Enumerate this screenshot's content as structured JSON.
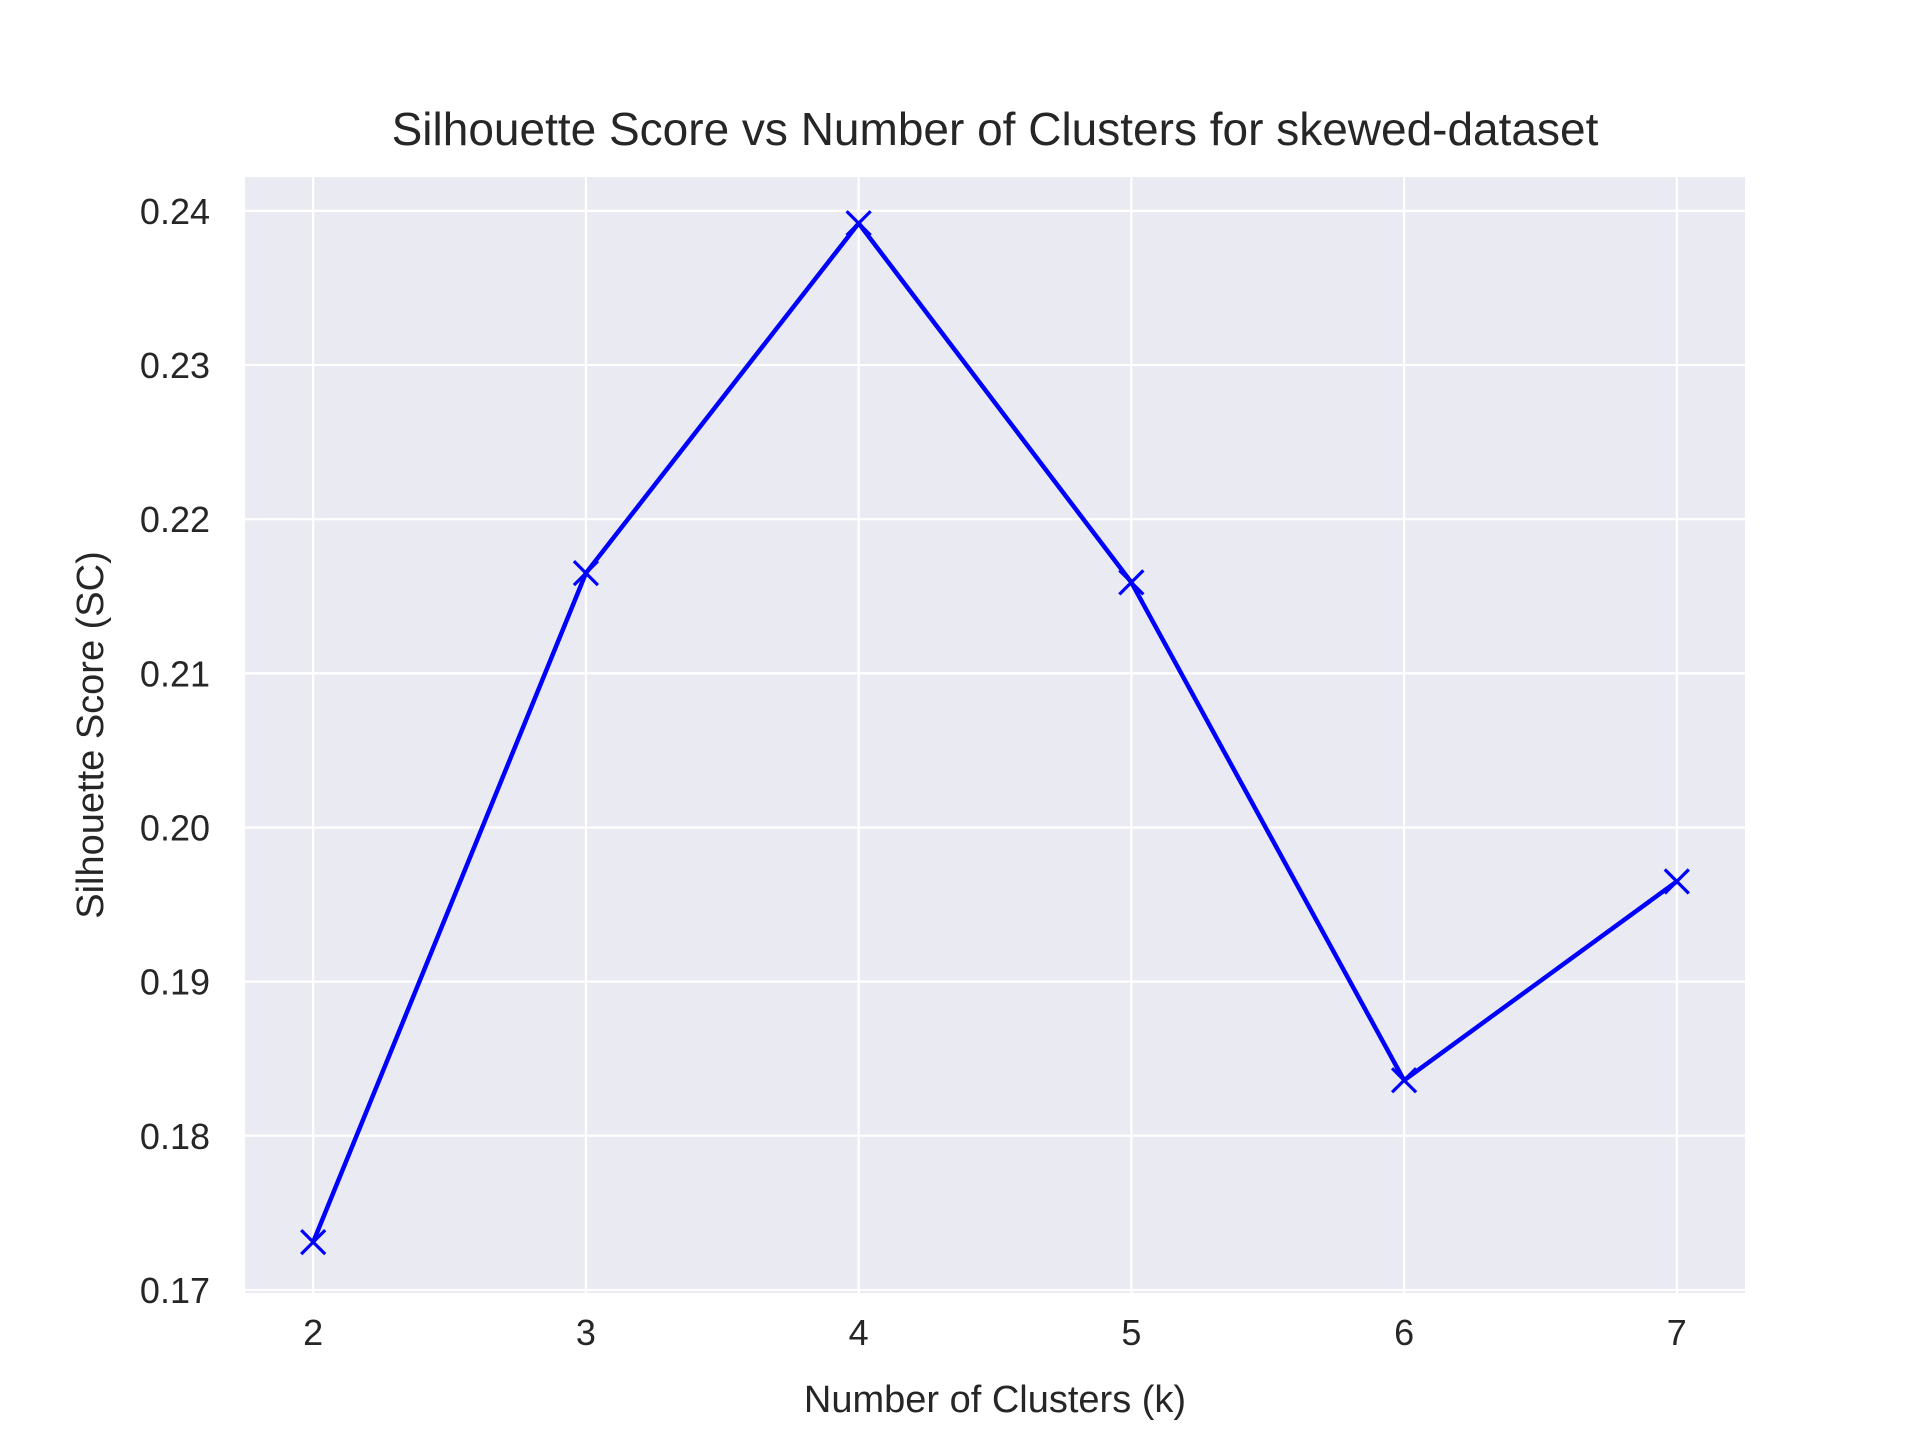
{
  "chart_data": {
    "type": "line",
    "title": "Silhouette Score vs Number of Clusters for skewed-dataset",
    "xlabel": "Number of Clusters (k)",
    "ylabel": "Silhouette Score (SC)",
    "x": [
      2,
      3,
      4,
      5,
      6,
      7
    ],
    "series": [
      {
        "values": [
          0.1731,
          0.2165,
          0.2392,
          0.2159,
          0.1836,
          0.1965
        ],
        "color": "#0000ff",
        "marker": "x"
      }
    ],
    "xlim": [
      1.75,
      7.25
    ],
    "ylim": [
      0.1698,
      0.2422
    ],
    "xticks": [
      2,
      3,
      4,
      5,
      6,
      7
    ],
    "xtick_labels": [
      "2",
      "3",
      "4",
      "5",
      "6",
      "7"
    ],
    "yticks": [
      0.17,
      0.18,
      0.19,
      0.2,
      0.21,
      0.22,
      0.23,
      0.24
    ],
    "ytick_labels": [
      "0.17",
      "0.18",
      "0.19",
      "0.20",
      "0.21",
      "0.22",
      "0.23",
      "0.24"
    ],
    "grid": true,
    "background": "#eaeaf2",
    "grid_color": "#ffffff"
  }
}
